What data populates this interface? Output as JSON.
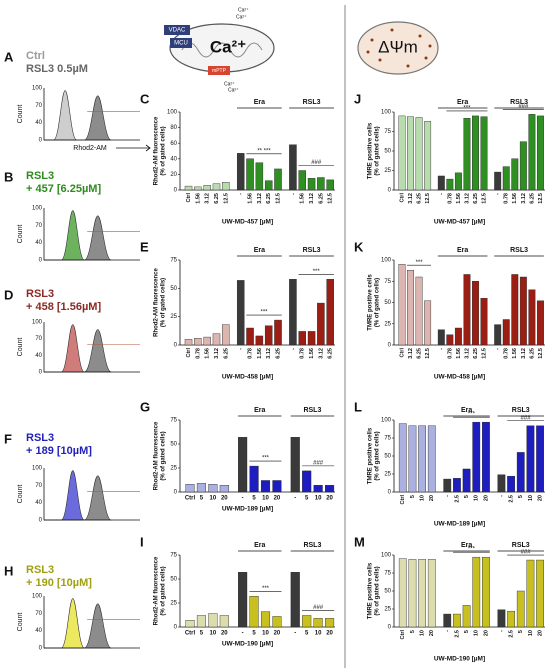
{
  "diagram": {
    "ca_in": "Ca²⁺",
    "ca_in2": "Ca²⁺",
    "vdac": "VDAC",
    "mcu": "MCU",
    "ca_big": "Ca²⁺",
    "mptp": "mPTP",
    "ca_out": "Ca²⁺",
    "ca_out2": "Ca²⁺",
    "dpsi": "ΔΨm"
  },
  "histograms": [
    {
      "letter": "A",
      "lines": [
        "Ctrl",
        "RSL3 0.5µM"
      ],
      "line_colors": [
        "#9a9a9a",
        "#666666"
      ],
      "color": "#bdbdbd",
      "yaxis": "Count",
      "yticks": [
        "0",
        "40",
        "70",
        "100"
      ],
      "xaxis": "Rhod2-AM"
    },
    {
      "letter": "B",
      "lines": [
        "RSL3",
        "+ 457 [6.25µM]"
      ],
      "line_colors": [
        "#2e8b1e",
        "#2e8b1e"
      ],
      "color": "#3c9a2a",
      "yaxis": "Count",
      "yticks": [
        "0",
        "40",
        "70",
        "100"
      ]
    },
    {
      "letter": "D",
      "lines": [
        "RSL3",
        "+ 458 [1.56µM]"
      ],
      "line_colors": [
        "#8b2a22",
        "#8b2a22"
      ],
      "color": "#c0504d",
      "yaxis": "Count",
      "yticks": [
        "0",
        "40",
        "70",
        "100"
      ]
    },
    {
      "letter": "F",
      "lines": [
        "RSL3",
        "+ 189 [10µM]"
      ],
      "line_colors": [
        "#2222bb",
        "#2222bb"
      ],
      "color": "#3a3ad0",
      "yaxis": "Count",
      "yticks": [
        "0",
        "40",
        "70",
        "100"
      ]
    },
    {
      "letter": "H",
      "lines": [
        "RSL3",
        "+ 190 [10µM]"
      ],
      "line_colors": [
        "#a0a010",
        "#a0a010"
      ],
      "color": "#e6e02a",
      "yaxis": "Count",
      "yticks": [
        "0",
        "40",
        "70",
        "100"
      ]
    }
  ],
  "chart_data": [
    {
      "type": "bar",
      "letter": "C",
      "ylabel": [
        "Rhod2-AM fluorescence",
        "(% of gated cells)"
      ],
      "xlabel": "UW-MD-457 [µM]",
      "ylim": [
        0,
        100
      ],
      "yticks": [
        0,
        20,
        40,
        60,
        80,
        100
      ],
      "colors": [
        "#b9dcae",
        "#2f8f22",
        "#3a3a3a"
      ],
      "groups": [
        {
          "categories": [
            "Ctrl",
            "1.56",
            "3.12",
            "6.25",
            "12.5"
          ],
          "values": [
            5,
            4,
            6,
            8,
            10
          ]
        },
        {
          "name": "Era",
          "annotation": "** ***",
          "categories": [
            "-",
            "1.56",
            "3.12",
            "6.25",
            "12.5"
          ],
          "values": [
            47,
            40,
            35,
            12,
            27
          ]
        },
        {
          "name": "RSL3",
          "annotation": "###",
          "categories": [
            "-",
            "1.56",
            "3.12",
            "6.25",
            "12.5"
          ],
          "values": [
            58,
            25,
            15,
            16,
            13
          ]
        }
      ]
    },
    {
      "type": "bar",
      "letter": "E",
      "ylabel": [
        "Rhod2-AM fluorescence",
        "(% of gated cells)"
      ],
      "xlabel": "UW-MD-458 [µM]",
      "ylim": [
        0,
        75
      ],
      "yticks": [
        0,
        25,
        50,
        75
      ],
      "colors": [
        "#dcb5b0",
        "#9a1e14",
        "#3a3a3a"
      ],
      "groups": [
        {
          "categories": [
            "Ctrl",
            "0.78",
            "1.56",
            "3.12",
            "6.25"
          ],
          "values": [
            5,
            6,
            7,
            10,
            18
          ]
        },
        {
          "name": "Era",
          "annotation": "***",
          "categories": [
            "-",
            "0.78",
            "1.56",
            "3.12",
            "6.25"
          ],
          "values": [
            57,
            15,
            8,
            17,
            22
          ]
        },
        {
          "name": "RSL3",
          "annotation": "***",
          "categories": [
            "-",
            "0.78",
            "1.56",
            "3.12",
            "6.25"
          ],
          "values": [
            58,
            12,
            12,
            37,
            58
          ]
        }
      ]
    },
    {
      "type": "bar",
      "letter": "G",
      "ylabel": [
        "Rhod2-AM fluorescence",
        "(% of gated cells)"
      ],
      "xlabel": "UW-MD-189 [µM]",
      "ylim": [
        0,
        75
      ],
      "yticks": [
        0,
        25,
        50,
        75
      ],
      "colors": [
        "#aab0e0",
        "#1e1ec0",
        "#3a3a3a"
      ],
      "groups": [
        {
          "categories": [
            "Ctrl",
            "5",
            "10",
            "20"
          ],
          "values": [
            8,
            9,
            8,
            7
          ]
        },
        {
          "name": "Era",
          "annotation": "***",
          "categories": [
            "-",
            "5",
            "10",
            "20"
          ],
          "values": [
            57,
            27,
            12,
            12
          ]
        },
        {
          "name": "RSL3",
          "annotation": "###",
          "categories": [
            "-",
            "5",
            "10",
            "20"
          ],
          "values": [
            57,
            22,
            7,
            7
          ]
        }
      ]
    },
    {
      "type": "bar",
      "letter": "I",
      "ylabel": [
        "Rhod2-AM fluorescence",
        "(% of gated cells)"
      ],
      "xlabel": "UW-MD-190 [µM]",
      "ylim": [
        0,
        75
      ],
      "yticks": [
        0,
        25,
        50,
        75
      ],
      "colors": [
        "#dcdcae",
        "#c8c020",
        "#3a3a3a"
      ],
      "groups": [
        {
          "categories": [
            "Ctrl",
            "5",
            "10",
            "20"
          ],
          "values": [
            7,
            12,
            14,
            12
          ]
        },
        {
          "name": "Era",
          "annotation": "***",
          "categories": [
            "-",
            "5",
            "10",
            "20"
          ],
          "values": [
            57,
            32,
            16,
            11
          ]
        },
        {
          "name": "RSL3",
          "annotation": "###",
          "categories": [
            "-",
            "5",
            "10",
            "20"
          ],
          "values": [
            57,
            12,
            9,
            9
          ]
        }
      ]
    },
    {
      "type": "bar",
      "letter": "J",
      "ylabel": [
        "TMRE positive cells",
        "(% of gated cells)"
      ],
      "xlabel": "UW-MD-457 [µM]",
      "ylim": [
        0,
        100
      ],
      "yticks": [
        0,
        25,
        50,
        75,
        100
      ],
      "colors": [
        "#b9dcae",
        "#2f8f22",
        "#3a3a3a"
      ],
      "groups": [
        {
          "categories": [
            "Ctrl",
            "3.12",
            "6.25",
            "12.5"
          ],
          "values": [
            95,
            94,
            93,
            88
          ]
        },
        {
          "name": "Era",
          "annotation": "***",
          "categories": [
            "-",
            "0.78",
            "1.56",
            "3.12",
            "6.25",
            "12.5"
          ],
          "values": [
            18,
            14,
            22,
            92,
            95,
            94
          ]
        },
        {
          "name": "RSL3",
          "annotation": "###",
          "categories": [
            "-",
            "0.78",
            "1.56",
            "3.12",
            "6.25",
            "12.5"
          ],
          "values": [
            23,
            30,
            40,
            62,
            97,
            95
          ]
        }
      ]
    },
    {
      "type": "bar",
      "letter": "K",
      "ylabel": [
        "TMRE positive cells",
        "(% of gated cells)"
      ],
      "xlabel": "UW-MD-458 [µM]",
      "ylim": [
        0,
        100
      ],
      "yticks": [
        0,
        25,
        50,
        75,
        100
      ],
      "colors": [
        "#dcb5b0",
        "#9a1e14",
        "#3a3a3a"
      ],
      "groups": [
        {
          "annotation": "***",
          "categories": [
            "Ctrl",
            "3.12",
            "6.25",
            "12.5"
          ],
          "values": [
            95,
            88,
            80,
            52
          ]
        },
        {
          "name": "Era",
          "categories": [
            "-",
            "0.78",
            "1.56",
            "3.12",
            "6.25",
            "12.5"
          ],
          "values": [
            18,
            12,
            20,
            83,
            75,
            55
          ]
        },
        {
          "name": "RSL3",
          "categories": [
            "-",
            "0.78",
            "1.56",
            "3.12",
            "6.25",
            "12.5"
          ],
          "values": [
            24,
            30,
            83,
            80,
            65,
            52
          ]
        }
      ]
    },
    {
      "type": "bar",
      "letter": "L",
      "ylabel": [
        "TMRE positive cells",
        "(% of gated cells)"
      ],
      "xlabel": "UW-MD-189 [µM]",
      "ylim": [
        0,
        100
      ],
      "yticks": [
        0,
        25,
        50,
        75,
        100
      ],
      "colors": [
        "#aab0e0",
        "#1e1ec0",
        "#3a3a3a"
      ],
      "groups": [
        {
          "categories": [
            "Ctrl",
            "5",
            "10",
            "20"
          ],
          "values": [
            95,
            92,
            92,
            92
          ]
        },
        {
          "name": "Era",
          "annotation": "***",
          "categories": [
            "-",
            "2.5",
            "5",
            "10",
            "20"
          ],
          "values": [
            18,
            19,
            32,
            97,
            97
          ]
        },
        {
          "name": "RSL3",
          "annotation": "###",
          "categories": [
            "-",
            "2.5",
            "5",
            "10",
            "20"
          ],
          "values": [
            24,
            22,
            55,
            92,
            92
          ]
        }
      ]
    },
    {
      "type": "bar",
      "letter": "M",
      "ylabel": [
        "TMRE positive cells",
        "(% of gated cells)"
      ],
      "xlabel": "UW-MD-190 [µM]",
      "ylim": [
        0,
        100
      ],
      "yticks": [
        0,
        25,
        50,
        75,
        100
      ],
      "colors": [
        "#dcdcae",
        "#c8c020",
        "#3a3a3a"
      ],
      "groups": [
        {
          "categories": [
            "Ctrl",
            "5",
            "10",
            "20"
          ],
          "values": [
            95,
            94,
            94,
            94
          ]
        },
        {
          "name": "Era",
          "annotation": "***",
          "categories": [
            "-",
            "2.5",
            "5",
            "10",
            "20"
          ],
          "values": [
            18,
            18,
            30,
            97,
            97
          ]
        },
        {
          "name": "RSL3",
          "annotation": "###",
          "categories": [
            "-",
            "2.5",
            "5",
            "10",
            "20"
          ],
          "values": [
            24,
            22,
            50,
            93,
            93
          ]
        }
      ]
    }
  ]
}
